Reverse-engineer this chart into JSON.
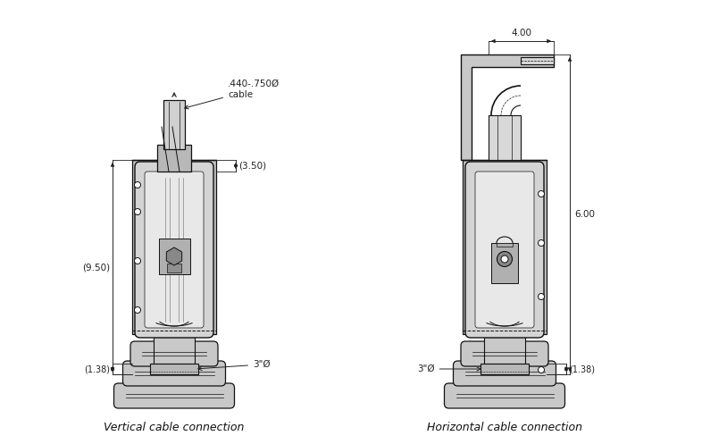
{
  "background_color": "#ffffff",
  "line_color": "#111111",
  "dim_color": "#222222",
  "gray_light": "#c8c8c8",
  "gray_mid": "#a0a0a0",
  "gray_dark": "#707070",
  "gray_body": "#d4d4d4",
  "label_vertical": "Vertical cable connection",
  "label_horizontal": "Horizontal cable connection",
  "dim_950": "(9.50)",
  "dim_350": "(3.50)",
  "dim_138": "(1.38)",
  "dim_3phi_v": "3\"Ø",
  "dim_cable": ".440-.750Ø\ncable",
  "dim_400": "4.00",
  "dim_600": "6.00",
  "dim_3phi_h": "3\"Ø",
  "figsize": [
    8.14,
    4.97
  ],
  "dpi": 100
}
